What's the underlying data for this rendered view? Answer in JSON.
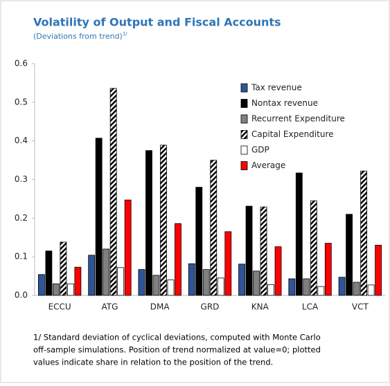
{
  "chart_data": {
    "type": "bar",
    "title": "Volatility of Output and Fiscal Accounts",
    "subtitle": "(Deviations from trend)",
    "subtitle_note": "1/",
    "footnote": [
      "1/ Standard deviation of cyclical deviations, computed with Monte Carlo",
      "off-sample simulations. Position of trend normalized at value=0; plotted",
      "values indicate share in relation to the position of the trend."
    ],
    "categories": [
      "ECCU",
      "ATG",
      "DMA",
      "GRD",
      "KNA",
      "LCA",
      "VCT"
    ],
    "series": [
      {
        "name": "Tax revenue",
        "color": "#2f5597",
        "values": [
          0.054,
          0.104,
          0.067,
          0.082,
          0.081,
          0.043,
          0.047
        ]
      },
      {
        "name": "Nontax revenue",
        "color": "#000000",
        "values": [
          0.115,
          0.407,
          0.375,
          0.28,
          0.231,
          0.317,
          0.21
        ]
      },
      {
        "name": "Recurrent Expenditure",
        "color": "#808080",
        "values": [
          0.03,
          0.12,
          0.052,
          0.067,
          0.063,
          0.043,
          0.034
        ]
      },
      {
        "name": "Capital Expenditure",
        "color": "#000000",
        "hatch": true,
        "values": [
          0.138,
          0.536,
          0.389,
          0.35,
          0.229,
          0.245,
          0.322
        ]
      },
      {
        "name": "GDP",
        "color": "#ffffff",
        "values": [
          0.03,
          0.072,
          0.04,
          0.045,
          0.028,
          0.023,
          0.027
        ]
      },
      {
        "name": "Average",
        "color": "#ff0000",
        "values": [
          0.073,
          0.247,
          0.186,
          0.165,
          0.126,
          0.135,
          0.13
        ]
      }
    ],
    "ylim": [
      0,
      0.6
    ],
    "yticks": [
      {
        "value": 0,
        "label": "0.0"
      },
      0.1,
      0.2,
      0.3,
      0.4,
      0.5,
      0.6
    ],
    "grid": false,
    "legend": "upper-right"
  }
}
